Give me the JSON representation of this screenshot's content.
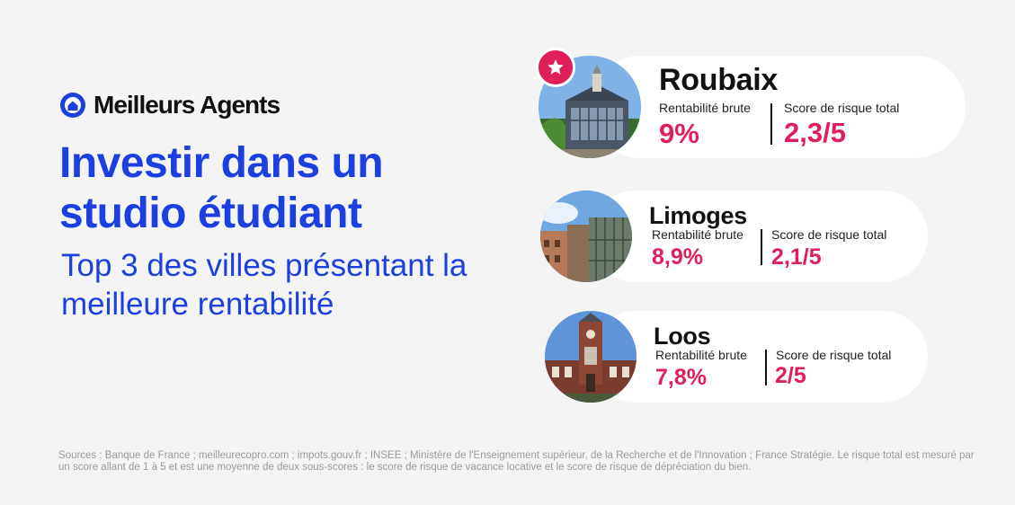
{
  "brand": {
    "name": "Meilleurs Agents",
    "logo_icon": "house-pin-icon",
    "color": "#1c3fe0"
  },
  "headline": "Investir dans un studio étudiant",
  "subheadline": "Top 3 des villes présentant la meilleure rentabilité",
  "accent_color": "#e01e5a",
  "badge_icon": "star-icon",
  "cities": [
    {
      "name": "Roubaix",
      "rent_label": "Rentabilité brute",
      "rent_value": "9%",
      "risk_label": "Score de risque total",
      "risk_value": "2,3/5",
      "photo_icon": "roubaix-market-hall-photo"
    },
    {
      "name": "Limoges",
      "rent_label": "Rentabilité brute",
      "rent_value": "8,9%",
      "risk_label": "Score de risque total",
      "risk_value": "2,1/5",
      "photo_icon": "limoges-market-photo"
    },
    {
      "name": "Loos",
      "rent_label": "Rentabilité brute",
      "rent_value": "7,8%",
      "risk_label": "Score de risque total",
      "risk_value": "2/5",
      "photo_icon": "loos-town-hall-photo"
    }
  ],
  "footer": "Sources : Banque de France ; meilleurecopro.com ; impots.gouv.fr ; INSEE ; Ministère de l'Enseignement supérieur, de la Recherche et de l'Innovation ; France Stratégie. Le risque total est mesuré par un score allant de 1 à 5 et est une moyenne de deux sous-scores : le score de risque de vacance locative et le score de risque de dépréciation du bien."
}
